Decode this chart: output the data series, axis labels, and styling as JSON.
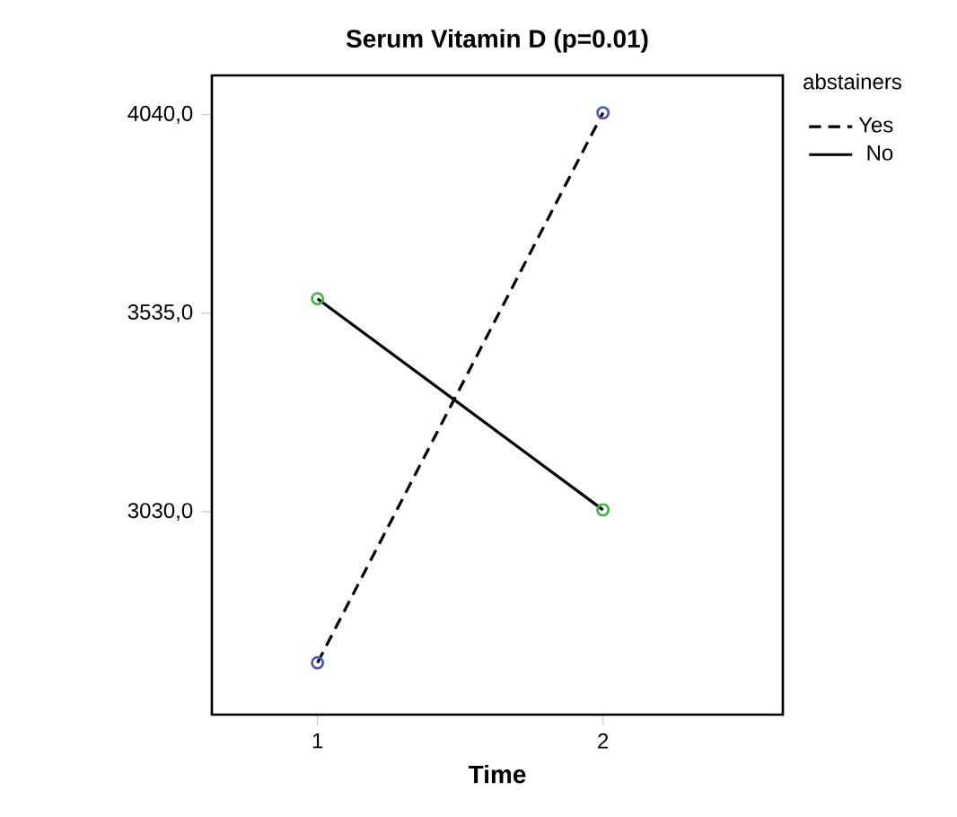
{
  "chart_data": {
    "type": "line",
    "title": "Serum Vitamin D (p=0.01)",
    "xlabel": "Time",
    "legend_title": "abstainers",
    "x": [
      1,
      2
    ],
    "xlim": [
      0.63,
      2.63
    ],
    "xticks": [
      1,
      2
    ],
    "ylim": [
      2514,
      4140
    ],
    "yticks": [
      {
        "value": 3030,
        "label": "3030,0"
      },
      {
        "value": 3535,
        "label": "3535,0"
      },
      {
        "value": 4040,
        "label": "4040,0"
      }
    ],
    "series": [
      {
        "name": "Yes",
        "color": "#000000",
        "colors": [
          "#4a5cb0",
          "#4a5cb0"
        ],
        "line_style": "dashed",
        "values": [
          2646,
          4045
        ]
      },
      {
        "name": "No",
        "color": "#000000",
        "colors": [
          "#4cb050",
          "#4cb050"
        ],
        "line_style": "solid",
        "values": [
          3572,
          3035
        ]
      }
    ],
    "marker": "circle",
    "legend": "top right",
    "grid": false
  }
}
